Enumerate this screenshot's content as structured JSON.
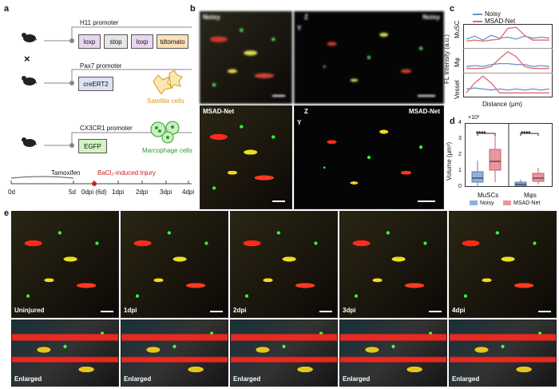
{
  "panel_a": {
    "label": "a",
    "h11_promoter": "H11 promoter",
    "loxp1": "loxp",
    "stop": "stop",
    "loxp2": "loxp",
    "tdtomato": "tdtomato",
    "cross": "×",
    "pax7_promoter": "Pax7 promoter",
    "creert2": "creERT2",
    "satellite_cells": "Satellite cells",
    "cx3cr1_promoter": "CX3CR1 promoter",
    "egfp": "EGFP",
    "macrophage_cells": "Marcophage cells",
    "tamoxifen": "Tamoxifen",
    "injury": "BaCl₂-induced Injury",
    "timeline": [
      "0d",
      "5d",
      "0dpi (6d)",
      "1dpi",
      "2dpi",
      "3dpi",
      "4dpi"
    ]
  },
  "panel_b": {
    "label": "b",
    "noisy_3d": "Noisy",
    "noisy_2d": "Noisy",
    "msad_3d": "MSAD-Net",
    "msad_2d": "MSAD-Net",
    "axis_z": "Z",
    "axis_y": "Y"
  },
  "panel_c": {
    "label": "c",
    "legend_noisy": "Noisy",
    "legend_msad": "MSAD-Net",
    "ylabel": "FL Intensity (a.u.)",
    "xlabel": "Distance (μm)",
    "rows": [
      "MuSC",
      "Mφ",
      "Vessel"
    ],
    "color_noisy": "#6b93c8",
    "color_msad": "#e06a73"
  },
  "panel_d": {
    "label": "d",
    "multiplier": "×10³",
    "ylabel": "Volume (μm³)",
    "yticks": [
      "0",
      "1",
      "2",
      "3",
      "4"
    ],
    "groups": [
      "MuSCs",
      "Mφs"
    ],
    "sig": [
      "****",
      "****"
    ],
    "legend_noisy": "Noisy",
    "legend_msad": "MSAD-Net"
  },
  "panel_e": {
    "label": "e",
    "timepoints": [
      "Uninjured",
      "1dpi",
      "2dpi",
      "3dpi",
      "4dpi"
    ],
    "enlarged": [
      "Enlarged",
      "Enlarged",
      "Enlarged",
      "Enlarged",
      "Enlarged"
    ]
  },
  "chart_data": [
    {
      "type": "line",
      "title": "",
      "xlabel": "Distance (μm)",
      "ylabel": "FL Intensity (a.u.)",
      "x": [
        0,
        1,
        2,
        3,
        4,
        5,
        6,
        7,
        8,
        9,
        10
      ],
      "series": [
        {
          "name": "Noisy",
          "row": "MuSC",
          "values": [
            0.35,
            0.5,
            0.3,
            0.55,
            0.4,
            0.45,
            0.35,
            0.5,
            0.4,
            0.45,
            0.4
          ]
        },
        {
          "name": "MSAD-Net",
          "row": "MuSC",
          "values": [
            0.25,
            0.3,
            0.25,
            0.3,
            0.35,
            0.9,
            0.95,
            0.55,
            0.3,
            0.3,
            0.3
          ]
        },
        {
          "name": "Noisy",
          "row": "Mφ",
          "values": [
            0.2,
            0.25,
            0.2,
            0.3,
            0.35,
            0.35,
            0.3,
            0.3,
            0.2,
            0.25,
            0.2
          ]
        },
        {
          "name": "MSAD-Net",
          "row": "Mφ",
          "values": [
            0.1,
            0.1,
            0.1,
            0.2,
            0.6,
            0.95,
            0.7,
            0.2,
            0.1,
            0.1,
            0.1
          ]
        },
        {
          "name": "Noisy",
          "row": "Vessel",
          "values": [
            0.3,
            0.35,
            0.3,
            0.25,
            0.3,
            0.25,
            0.3,
            0.25,
            0.3,
            0.25,
            0.3
          ]
        },
        {
          "name": "MSAD-Net",
          "row": "Vessel",
          "values": [
            0.1,
            0.6,
            0.95,
            0.6,
            0.1,
            0.1,
            0.1,
            0.1,
            0.1,
            0.1,
            0.1
          ]
        }
      ]
    },
    {
      "type": "box",
      "title": "",
      "ylabel": "Volume (μm³)",
      "ylim": [
        0,
        4
      ],
      "multiplier": "×10³",
      "categories": [
        "MuSCs",
        "Mφs"
      ],
      "series": [
        {
          "name": "Noisy",
          "boxes": [
            {
              "min": 0.0,
              "q1": 0.3,
              "median": 0.55,
              "q3": 0.95,
              "max": 1.65
            },
            {
              "min": 0.0,
              "q1": 0.08,
              "median": 0.16,
              "q3": 0.3,
              "max": 0.45
            }
          ]
        },
        {
          "name": "MSAD-Net",
          "boxes": [
            {
              "min": 0.3,
              "q1": 1.05,
              "median": 1.6,
              "q3": 2.35,
              "max": 3.2
            },
            {
              "min": 0.15,
              "q1": 0.35,
              "median": 0.55,
              "q3": 0.85,
              "max": 1.2
            }
          ]
        }
      ]
    }
  ]
}
